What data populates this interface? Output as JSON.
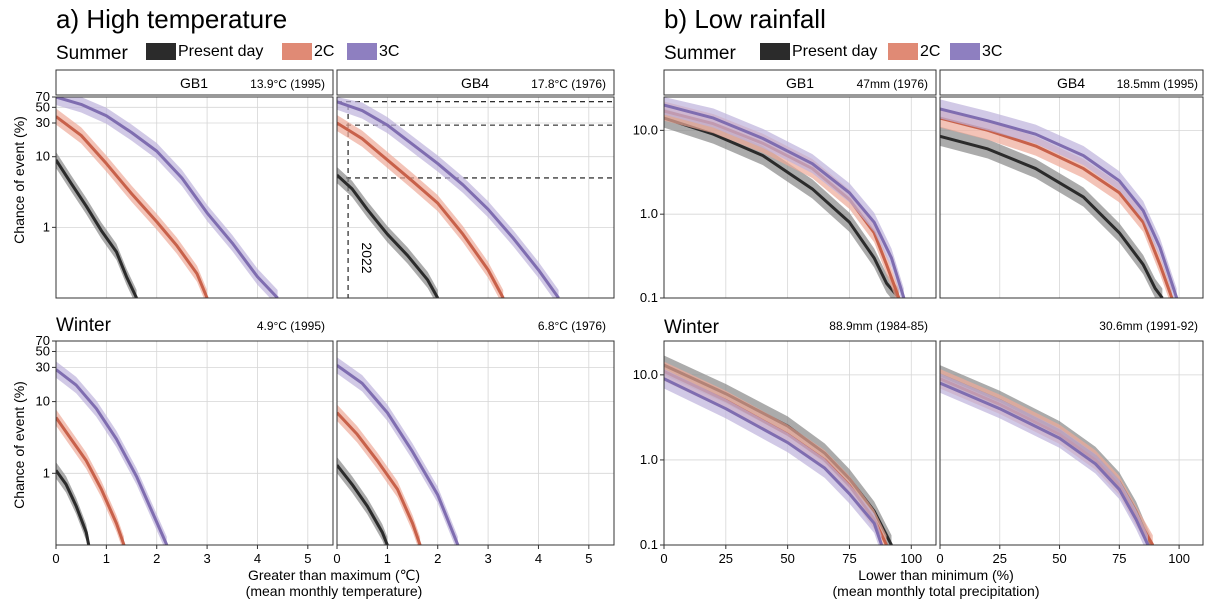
{
  "colors": {
    "present": "#2b2b2b",
    "c2": "#c8614a",
    "c3": "#7f6db0",
    "present_band": "#888888",
    "c2_band": "#eeaa99",
    "c3_band": "#bdb2dc"
  },
  "legend": [
    "Present day",
    "2C",
    "3C"
  ],
  "panel_a": {
    "title": "a) High temperature",
    "seasons": [
      "Summer",
      "Winter"
    ],
    "ylabel": "Chance of event (%)",
    "xlabel_line1": "Greater than maximum (℃)",
    "xlabel_line2": "(mean monthly temperature)",
    "regions": [
      "GB1",
      "GB4"
    ],
    "records": {
      "summer": [
        "13.9°C (1995)",
        "17.8°C (1976)"
      ],
      "winter": [
        "4.9°C (1995)",
        "6.8°C (1976)"
      ]
    },
    "annotation": "2022"
  },
  "panel_b": {
    "title": "b) Low rainfall",
    "seasons": [
      "Summer",
      "Winter"
    ],
    "xlabel_line1": "Lower than minimum (%)",
    "xlabel_line2": "(mean monthly total precipitation)",
    "regions": [
      "GB1",
      "GB4"
    ],
    "records": {
      "summer": [
        "47mm (1976)",
        "18.5mm (1995)"
      ],
      "winter": [
        "88.9mm (1984-85)",
        "30.6mm (1991-92)"
      ]
    }
  },
  "chart_data": [
    {
      "type": "line",
      "panel": "a",
      "season": "Summer",
      "region": "GB1",
      "xlim": [
        0,
        5.5
      ],
      "ylim": [
        0.1,
        70
      ],
      "yscale": "log",
      "xticks": [
        "0",
        "1",
        "2",
        "3",
        "4",
        "5"
      ],
      "yticks": [
        "1",
        "10",
        "30",
        "50",
        "70"
      ],
      "series": [
        {
          "name": "Present day",
          "x": [
            0,
            0.3,
            0.6,
            0.9,
            1.2,
            1.4,
            1.6
          ],
          "y": [
            9,
            4.2,
            2,
            0.9,
            0.45,
            0.2,
            0.1
          ]
        },
        {
          "name": "2C",
          "x": [
            0,
            0.5,
            1.0,
            1.5,
            2.0,
            2.4,
            2.8,
            3.0
          ],
          "y": [
            37,
            20,
            8,
            3,
            1.2,
            0.55,
            0.22,
            0.1
          ]
        },
        {
          "name": "3C",
          "x": [
            0,
            0.5,
            1.0,
            1.5,
            2.0,
            2.5,
            3.0,
            3.5,
            4.0,
            4.4
          ],
          "y": [
            70,
            55,
            38,
            22,
            12,
            5,
            1.6,
            0.6,
            0.2,
            0.1
          ]
        }
      ]
    },
    {
      "type": "line",
      "panel": "a",
      "season": "Summer",
      "region": "GB4",
      "xlim": [
        0,
        5.5
      ],
      "ylim": [
        0.1,
        70
      ],
      "yscale": "log",
      "xticks": [
        "0",
        "1",
        "2",
        "3",
        "4",
        "5"
      ],
      "yticks": [
        "1",
        "10",
        "30",
        "50",
        "70"
      ],
      "series": [
        {
          "name": "Present day",
          "x": [
            0,
            0.3,
            0.6,
            1.0,
            1.4,
            1.8,
            2.0
          ],
          "y": [
            5.5,
            3.5,
            1.8,
            0.8,
            0.4,
            0.18,
            0.1
          ]
        },
        {
          "name": "2C",
          "x": [
            0,
            0.5,
            1.0,
            1.5,
            2.0,
            2.5,
            3.0,
            3.3
          ],
          "y": [
            30,
            18,
            9,
            4.5,
            2.2,
            0.8,
            0.25,
            0.1
          ]
        },
        {
          "name": "3C",
          "x": [
            0,
            0.5,
            1.0,
            1.5,
            2.0,
            2.5,
            3.0,
            3.5,
            4.0,
            4.4
          ],
          "y": [
            60,
            45,
            28,
            15,
            8,
            4,
            1.8,
            0.7,
            0.25,
            0.1
          ]
        }
      ]
    },
    {
      "type": "line",
      "panel": "a",
      "season": "Winter",
      "region": "GB1",
      "xlim": [
        0,
        5.5
      ],
      "ylim": [
        0.1,
        70
      ],
      "yscale": "log",
      "xticks": [
        "0",
        "1",
        "2",
        "3",
        "4",
        "5"
      ],
      "yticks": [
        "1",
        "10",
        "30",
        "50",
        "70"
      ],
      "series": [
        {
          "name": "Present day",
          "x": [
            0,
            0.2,
            0.4,
            0.6,
            0.65
          ],
          "y": [
            1.1,
            0.7,
            0.35,
            0.15,
            0.1
          ]
        },
        {
          "name": "2C",
          "x": [
            0,
            0.3,
            0.6,
            0.9,
            1.2,
            1.35
          ],
          "y": [
            6,
            3,
            1.5,
            0.6,
            0.2,
            0.1
          ]
        },
        {
          "name": "3C",
          "x": [
            0,
            0.4,
            0.8,
            1.2,
            1.6,
            1.9,
            2.2
          ],
          "y": [
            28,
            17,
            8,
            3,
            0.9,
            0.3,
            0.1
          ]
        }
      ]
    },
    {
      "type": "line",
      "panel": "a",
      "season": "Winter",
      "region": "GB4",
      "xlim": [
        0,
        5.5
      ],
      "ylim": [
        0.1,
        70
      ],
      "yscale": "log",
      "xticks": [
        "0",
        "1",
        "2",
        "3",
        "4",
        "5"
      ],
      "yticks": [
        "1",
        "10",
        "30",
        "50",
        "70"
      ],
      "series": [
        {
          "name": "Present day",
          "x": [
            0,
            0.3,
            0.6,
            0.9,
            1.0
          ],
          "y": [
            1.3,
            0.7,
            0.35,
            0.15,
            0.1
          ]
        },
        {
          "name": "2C",
          "x": [
            0,
            0.4,
            0.8,
            1.2,
            1.5,
            1.65
          ],
          "y": [
            7,
            3.5,
            1.5,
            0.6,
            0.2,
            0.1
          ]
        },
        {
          "name": "3C",
          "x": [
            0,
            0.5,
            1.0,
            1.5,
            2.0,
            2.4
          ],
          "y": [
            32,
            18,
            7,
            2,
            0.5,
            0.1
          ]
        }
      ]
    },
    {
      "type": "line",
      "panel": "b",
      "season": "Summer",
      "region": "GB1",
      "xlim": [
        0,
        110
      ],
      "ylim": [
        0.1,
        25
      ],
      "yscale": "log",
      "xticks": [
        "0",
        "25",
        "50",
        "75",
        "100"
      ],
      "yticks": [
        "0.1",
        "1.0",
        "10.0"
      ],
      "series": [
        {
          "name": "Present day",
          "x": [
            0,
            20,
            40,
            60,
            75,
            85,
            90,
            95
          ],
          "y": [
            14,
            9,
            5,
            2,
            0.8,
            0.3,
            0.15,
            0.1
          ]
        },
        {
          "name": "2C",
          "x": [
            0,
            20,
            40,
            60,
            75,
            85,
            90,
            95
          ],
          "y": [
            17,
            12,
            7,
            3.5,
            1.5,
            0.6,
            0.25,
            0.1
          ]
        },
        {
          "name": "3C",
          "x": [
            0,
            20,
            40,
            60,
            75,
            85,
            92,
            97
          ],
          "y": [
            20,
            14,
            8,
            4,
            1.8,
            0.8,
            0.3,
            0.1
          ]
        }
      ]
    },
    {
      "type": "line",
      "panel": "b",
      "season": "Summer",
      "region": "GB4",
      "xlim": [
        0,
        110
      ],
      "ylim": [
        0.1,
        25
      ],
      "yscale": "log",
      "xticks": [
        "0",
        "25",
        "50",
        "75",
        "100"
      ],
      "yticks": [
        "0.1",
        "1.0",
        "10.0"
      ],
      "series": [
        {
          "name": "Present day",
          "x": [
            0,
            20,
            40,
            60,
            75,
            85,
            90,
            93
          ],
          "y": [
            8.5,
            6,
            3.5,
            1.6,
            0.6,
            0.25,
            0.13,
            0.1
          ]
        },
        {
          "name": "2C",
          "x": [
            0,
            20,
            40,
            60,
            75,
            85,
            92,
            97
          ],
          "y": [
            14,
            10,
            6.5,
            3.5,
            1.8,
            0.8,
            0.25,
            0.1
          ]
        },
        {
          "name": "3C",
          "x": [
            0,
            20,
            40,
            60,
            75,
            85,
            92,
            99
          ],
          "y": [
            18,
            13,
            9,
            5,
            2.5,
            1.1,
            0.4,
            0.1
          ]
        }
      ]
    },
    {
      "type": "line",
      "panel": "b",
      "season": "Winter",
      "region": "GB1",
      "xlim": [
        0,
        110
      ],
      "ylim": [
        0.1,
        25
      ],
      "yscale": "log",
      "xticks": [
        "0",
        "25",
        "50",
        "75",
        "100"
      ],
      "yticks": [
        "0.1",
        "1.0",
        "10.0"
      ],
      "series": [
        {
          "name": "Present day",
          "x": [
            0,
            25,
            50,
            65,
            75,
            85,
            92
          ],
          "y": [
            13,
            6,
            2.5,
            1.2,
            0.6,
            0.25,
            0.1
          ]
        },
        {
          "name": "2C",
          "x": [
            0,
            25,
            50,
            65,
            75,
            85,
            90
          ],
          "y": [
            11,
            5,
            2,
            1,
            0.5,
            0.2,
            0.1
          ]
        },
        {
          "name": "3C",
          "x": [
            0,
            25,
            50,
            65,
            75,
            85,
            88
          ],
          "y": [
            9,
            4,
            1.6,
            0.8,
            0.4,
            0.18,
            0.1
          ]
        }
      ]
    },
    {
      "type": "line",
      "panel": "b",
      "season": "Winter",
      "region": "GB4",
      "xlim": [
        0,
        110
      ],
      "ylim": [
        0.1,
        25
      ],
      "yscale": "log",
      "xticks": [
        "0",
        "25",
        "50",
        "75",
        "100"
      ],
      "yticks": [
        "0.1",
        "1.0",
        "10.0"
      ],
      "series": [
        {
          "name": "Present day",
          "x": [
            0,
            25,
            50,
            65,
            75,
            82,
            88
          ],
          "y": [
            10,
            5,
            2.2,
            1.1,
            0.55,
            0.25,
            0.1
          ]
        },
        {
          "name": "2C",
          "x": [
            0,
            25,
            50,
            65,
            75,
            82,
            89
          ],
          "y": [
            9,
            4.5,
            2,
            1,
            0.5,
            0.22,
            0.1
          ]
        },
        {
          "name": "3C",
          "x": [
            0,
            25,
            50,
            65,
            75,
            82,
            87
          ],
          "y": [
            8,
            4,
            1.8,
            0.9,
            0.45,
            0.2,
            0.1
          ]
        }
      ]
    }
  ]
}
